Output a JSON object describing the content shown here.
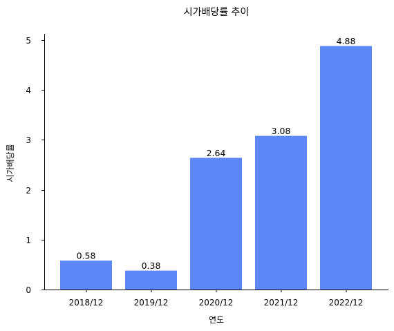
{
  "chart_data": {
    "type": "bar",
    "title": "시가배당률 추이",
    "xlabel": "연도",
    "ylabel": "시가배당률",
    "categories": [
      "2018/12",
      "2019/12",
      "2020/12",
      "2021/12",
      "2022/12"
    ],
    "values": [
      0.58,
      0.38,
      2.64,
      3.08,
      4.88
    ],
    "value_labels": [
      "0.58",
      "0.38",
      "2.64",
      "3.08",
      "4.88"
    ],
    "y_ticks": [
      0,
      1,
      2,
      3,
      4,
      5
    ],
    "ylim": [
      0,
      5.124
    ],
    "grid": false,
    "legend": "none",
    "bar_color": "#5c88f7"
  }
}
